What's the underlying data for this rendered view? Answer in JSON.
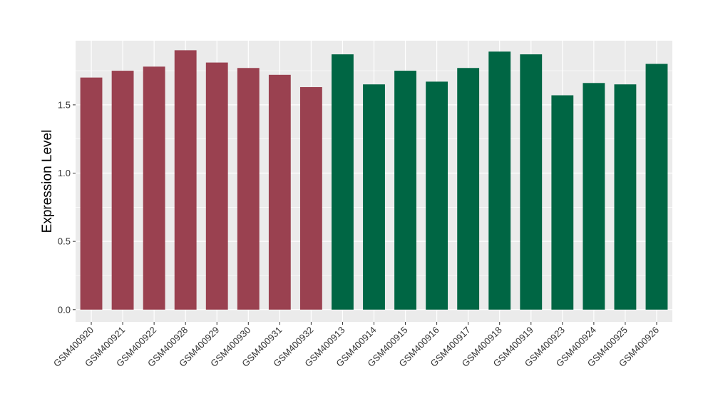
{
  "chart_data": {
    "type": "bar",
    "title": "",
    "xlabel": "",
    "ylabel": "Expression Level",
    "ylim": [
      -0.09,
      1.97
    ],
    "yticks": [
      0.0,
      0.5,
      1.0,
      1.5
    ],
    "ytick_labels": [
      "0.0",
      "0.5",
      "1.0",
      "1.5"
    ],
    "grid": true,
    "legend": "none",
    "categories": [
      "GSM400920",
      "GSM400921",
      "GSM400922",
      "GSM400928",
      "GSM400929",
      "GSM400930",
      "GSM400931",
      "GSM400932",
      "GSM400913",
      "GSM400914",
      "GSM400915",
      "GSM400916",
      "GSM400917",
      "GSM400918",
      "GSM400919",
      "GSM400923",
      "GSM400924",
      "GSM400925",
      "GSM400926"
    ],
    "values": [
      1.7,
      1.75,
      1.78,
      1.9,
      1.81,
      1.77,
      1.72,
      1.63,
      1.87,
      1.65,
      1.75,
      1.67,
      1.77,
      1.89,
      1.87,
      1.57,
      1.66,
      1.65,
      1.8
    ],
    "group": [
      0,
      0,
      0,
      0,
      0,
      0,
      0,
      0,
      1,
      1,
      1,
      1,
      1,
      1,
      1,
      1,
      1,
      1,
      1
    ],
    "group_colors": [
      "#9A4150",
      "#006644"
    ],
    "panel_color": "#EBEBEB",
    "grid_color": "#FFFFFF"
  }
}
